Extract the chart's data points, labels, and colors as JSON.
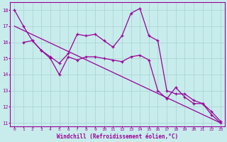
{
  "xlabel": "Windchill (Refroidissement éolien,°C)",
  "bg_color": "#c8ecec",
  "line_color": "#990099",
  "grid_color": "#b0d8d8",
  "xlim": [
    -0.5,
    23.5
  ],
  "ylim": [
    10.8,
    18.5
  ],
  "xticks": [
    0,
    1,
    2,
    3,
    4,
    5,
    6,
    7,
    8,
    9,
    10,
    11,
    12,
    13,
    14,
    15,
    16,
    17,
    18,
    19,
    20,
    21,
    22,
    23
  ],
  "yticks": [
    11,
    12,
    13,
    14,
    15,
    16,
    17,
    18
  ],
  "series1_x": [
    0,
    1,
    2,
    3,
    4,
    5,
    6,
    7,
    8,
    9,
    10,
    11,
    12,
    13,
    14,
    15,
    16,
    17,
    18,
    19,
    20,
    21,
    22,
    23
  ],
  "series1_y": [
    18.0,
    17.0,
    16.1,
    15.5,
    15.1,
    14.7,
    15.3,
    16.5,
    16.4,
    16.5,
    16.1,
    15.7,
    16.4,
    17.8,
    18.1,
    16.4,
    16.1,
    13.0,
    12.8,
    12.8,
    12.4,
    12.2,
    11.5,
    11.0
  ],
  "series2_x": [
    1,
    2,
    3,
    4,
    5,
    6,
    7,
    8,
    9,
    10,
    11,
    12,
    13,
    14,
    15,
    16,
    17,
    18,
    19,
    20,
    21,
    22,
    23
  ],
  "series2_y": [
    16.0,
    16.1,
    15.5,
    15.0,
    14.0,
    15.1,
    14.9,
    15.1,
    15.1,
    15.0,
    14.9,
    14.8,
    15.1,
    15.2,
    14.9,
    13.0,
    12.5,
    13.2,
    12.6,
    12.2,
    12.2,
    11.7,
    11.1
  ],
  "series3_x": [
    0,
    23
  ],
  "series3_y": [
    17.0,
    11.0
  ]
}
